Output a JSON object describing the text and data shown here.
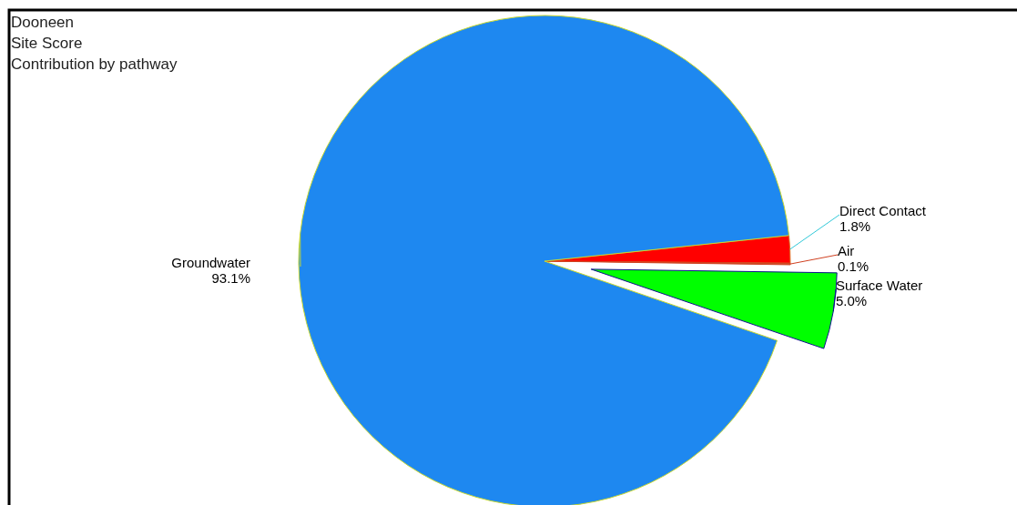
{
  "chart_data": {
    "type": "pie",
    "title": "Dooneen",
    "subtitle": "Site Score",
    "annotations": [
      "Contribution by pathway"
    ],
    "categories": [
      "Direct Contact",
      "Air",
      "Surface Water",
      "Groundwater"
    ],
    "values": [
      1.8,
      0.1,
      5.0,
      93.1
    ],
    "value_labels": [
      "1.8%",
      "0.1%",
      "5.0%",
      "93.1%"
    ],
    "colors": [
      "#ff0000",
      "#c85a28",
      "#00ff00",
      "#1e88f0"
    ]
  }
}
